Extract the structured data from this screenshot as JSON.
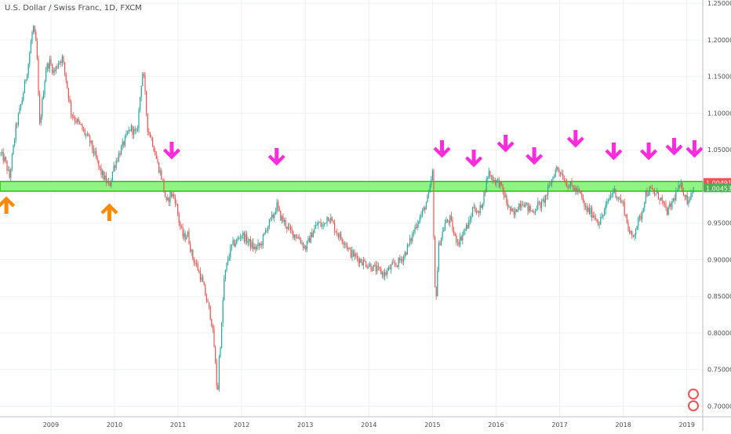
{
  "header": {
    "symbol_title": "U.S. Dollar / Swiss Franc, 1D, FXCM"
  },
  "colors": {
    "up_candle": "#26a69a",
    "down_candle": "#ef5350",
    "support_zone_fill": "#8af37e",
    "support_zone_border": "#21c400",
    "arrow_up": "#ff8a00",
    "arrow_down": "#ff2bdc",
    "price_badge_current": "#ef5350",
    "price_badge_zone": "#4caf50",
    "grid": "#eef0f3",
    "axis_text": "#4a4a4a"
  },
  "price_labels": {
    "current": "1.00491",
    "zone": "1.00453"
  },
  "chart_data": {
    "type": "candlestick",
    "title": "U.S. Dollar / Swiss Franc, 1D, FXCM",
    "grid": true,
    "xlim": [
      2008.2,
      2019.25
    ],
    "ylim": [
      0.6855,
      1.2545
    ],
    "x_ticks": [
      {
        "x": 2009,
        "label": "2009"
      },
      {
        "x": 2010,
        "label": "2010"
      },
      {
        "x": 2011,
        "label": "2011"
      },
      {
        "x": 2012,
        "label": "2012"
      },
      {
        "x": 2013,
        "label": "2013"
      },
      {
        "x": 2014,
        "label": "2014"
      },
      {
        "x": 2015,
        "label": "2015"
      },
      {
        "x": 2016,
        "label": "2016"
      },
      {
        "x": 2017,
        "label": "2017"
      },
      {
        "x": 2018,
        "label": "2018"
      },
      {
        "x": 2019,
        "label": "2019"
      }
    ],
    "y_ticks": [
      {
        "y": 1.25,
        "label": "1.25000"
      },
      {
        "y": 1.2,
        "label": "1.20000"
      },
      {
        "y": 1.15,
        "label": "1.15000"
      },
      {
        "y": 1.1,
        "label": "1.10000"
      },
      {
        "y": 1.05,
        "label": "1.05000"
      },
      {
        "y": 0.95,
        "label": "0.95000"
      },
      {
        "y": 0.9,
        "label": "0.90000"
      },
      {
        "y": 0.85,
        "label": "0.85000"
      },
      {
        "y": 0.8,
        "label": "0.80000"
      },
      {
        "y": 0.75,
        "label": "0.75000"
      },
      {
        "y": 0.7,
        "label": "0.70000"
      }
    ],
    "price_path": [
      [
        2008.2,
        1.045
      ],
      [
        2008.28,
        1.035
      ],
      [
        2008.35,
        1.012
      ],
      [
        2008.45,
        1.08
      ],
      [
        2008.55,
        1.12
      ],
      [
        2008.65,
        1.17
      ],
      [
        2008.72,
        1.22
      ],
      [
        2008.78,
        1.185
      ],
      [
        2008.82,
        1.08
      ],
      [
        2008.87,
        1.12
      ],
      [
        2008.92,
        1.16
      ],
      [
        2008.98,
        1.17
      ],
      [
        2009.05,
        1.155
      ],
      [
        2009.12,
        1.17
      ],
      [
        2009.18,
        1.175
      ],
      [
        2009.25,
        1.14
      ],
      [
        2009.32,
        1.1
      ],
      [
        2009.4,
        1.09
      ],
      [
        2009.48,
        1.08
      ],
      [
        2009.55,
        1.07
      ],
      [
        2009.62,
        1.06
      ],
      [
        2009.7,
        1.04
      ],
      [
        2009.78,
        1.02
      ],
      [
        2009.85,
        1.01
      ],
      [
        2009.92,
        1.0
      ],
      [
        2009.98,
        1.025
      ],
      [
        2010.05,
        1.04
      ],
      [
        2010.15,
        1.06
      ],
      [
        2010.25,
        1.08
      ],
      [
        2010.35,
        1.07
      ],
      [
        2010.42,
        1.14
      ],
      [
        2010.45,
        1.16
      ],
      [
        2010.52,
        1.08
      ],
      [
        2010.6,
        1.06
      ],
      [
        2010.68,
        1.03
      ],
      [
        2010.75,
        1.01
      ],
      [
        2010.82,
        0.975
      ],
      [
        2010.88,
        0.99
      ],
      [
        2010.95,
        0.985
      ],
      [
        2011.02,
        0.95
      ],
      [
        2011.08,
        0.93
      ],
      [
        2011.15,
        0.935
      ],
      [
        2011.22,
        0.905
      ],
      [
        2011.3,
        0.89
      ],
      [
        2011.38,
        0.87
      ],
      [
        2011.45,
        0.845
      ],
      [
        2011.52,
        0.82
      ],
      [
        2011.56,
        0.79
      ],
      [
        2011.6,
        0.74
      ],
      [
        2011.62,
        0.71
      ],
      [
        2011.64,
        0.76
      ],
      [
        2011.68,
        0.8
      ],
      [
        2011.72,
        0.87
      ],
      [
        2011.78,
        0.9
      ],
      [
        2011.85,
        0.92
      ],
      [
        2011.92,
        0.925
      ],
      [
        2012.0,
        0.935
      ],
      [
        2012.1,
        0.925
      ],
      [
        2012.2,
        0.915
      ],
      [
        2012.3,
        0.92
      ],
      [
        2012.4,
        0.945
      ],
      [
        2012.5,
        0.96
      ],
      [
        2012.55,
        0.975
      ],
      [
        2012.6,
        0.96
      ],
      [
        2012.68,
        0.95
      ],
      [
        2012.75,
        0.94
      ],
      [
        2012.82,
        0.935
      ],
      [
        2012.9,
        0.93
      ],
      [
        2013.0,
        0.915
      ],
      [
        2013.1,
        0.935
      ],
      [
        2013.2,
        0.95
      ],
      [
        2013.28,
        0.945
      ],
      [
        2013.35,
        0.96
      ],
      [
        2013.4,
        0.955
      ],
      [
        2013.48,
        0.94
      ],
      [
        2013.55,
        0.93
      ],
      [
        2013.62,
        0.925
      ],
      [
        2013.7,
        0.91
      ],
      [
        2013.78,
        0.905
      ],
      [
        2013.85,
        0.9
      ],
      [
        2013.95,
        0.895
      ],
      [
        2014.05,
        0.89
      ],
      [
        2014.15,
        0.885
      ],
      [
        2014.25,
        0.88
      ],
      [
        2014.35,
        0.89
      ],
      [
        2014.45,
        0.895
      ],
      [
        2014.55,
        0.905
      ],
      [
        2014.65,
        0.925
      ],
      [
        2014.75,
        0.95
      ],
      [
        2014.85,
        0.965
      ],
      [
        2014.95,
        0.99
      ],
      [
        2015.0,
        1.02
      ],
      [
        2015.03,
        0.88
      ],
      [
        2015.05,
        0.84
      ],
      [
        2015.1,
        0.92
      ],
      [
        2015.2,
        0.95
      ],
      [
        2015.28,
        0.955
      ],
      [
        2015.35,
        0.93
      ],
      [
        2015.42,
        0.925
      ],
      [
        2015.5,
        0.94
      ],
      [
        2015.58,
        0.95
      ],
      [
        2015.65,
        0.975
      ],
      [
        2015.72,
        0.96
      ],
      [
        2015.8,
        0.985
      ],
      [
        2015.88,
        1.02
      ],
      [
        2015.95,
        1.01
      ],
      [
        2016.05,
        1.005
      ],
      [
        2016.12,
        0.99
      ],
      [
        2016.2,
        0.97
      ],
      [
        2016.28,
        0.96
      ],
      [
        2016.35,
        0.975
      ],
      [
        2016.42,
        0.98
      ],
      [
        2016.5,
        0.97
      ],
      [
        2016.58,
        0.965
      ],
      [
        2016.65,
        0.975
      ],
      [
        2016.72,
        0.975
      ],
      [
        2016.8,
        0.99
      ],
      [
        2016.88,
        1.01
      ],
      [
        2016.95,
        1.025
      ],
      [
        2017.02,
        1.02
      ],
      [
        2017.1,
        1.005
      ],
      [
        2017.18,
        1.0
      ],
      [
        2017.25,
        0.995
      ],
      [
        2017.32,
        0.99
      ],
      [
        2017.4,
        0.97
      ],
      [
        2017.48,
        0.965
      ],
      [
        2017.55,
        0.96
      ],
      [
        2017.62,
        0.95
      ],
      [
        2017.7,
        0.965
      ],
      [
        2017.78,
        0.985
      ],
      [
        2017.85,
        0.995
      ],
      [
        2017.92,
        0.985
      ],
      [
        2018.0,
        0.975
      ],
      [
        2018.05,
        0.955
      ],
      [
        2018.1,
        0.935
      ],
      [
        2018.15,
        0.93
      ],
      [
        2018.2,
        0.945
      ],
      [
        2018.28,
        0.96
      ],
      [
        2018.35,
        0.99
      ],
      [
        2018.42,
        0.995
      ],
      [
        2018.5,
        0.99
      ],
      [
        2018.58,
        0.985
      ],
      [
        2018.65,
        0.97
      ],
      [
        2018.7,
        0.965
      ],
      [
        2018.78,
        0.98
      ],
      [
        2018.85,
        0.995
      ],
      [
        2018.92,
        1.0
      ],
      [
        2018.98,
        0.985
      ],
      [
        2019.02,
        0.98
      ],
      [
        2019.08,
        0.995
      ],
      [
        2019.12,
        1.005
      ]
    ],
    "annotations": {
      "support_zone": {
        "y_low": 0.9935,
        "y_high": 1.0068
      },
      "up_arrows_x": [
        2008.3,
        2009.92
      ],
      "down_arrows_x": [
        2010.9,
        2012.55,
        2015.15,
        2015.65,
        2016.15,
        2016.6,
        2017.25,
        2017.85,
        2018.4,
        2018.8,
        2019.12
      ]
    }
  }
}
